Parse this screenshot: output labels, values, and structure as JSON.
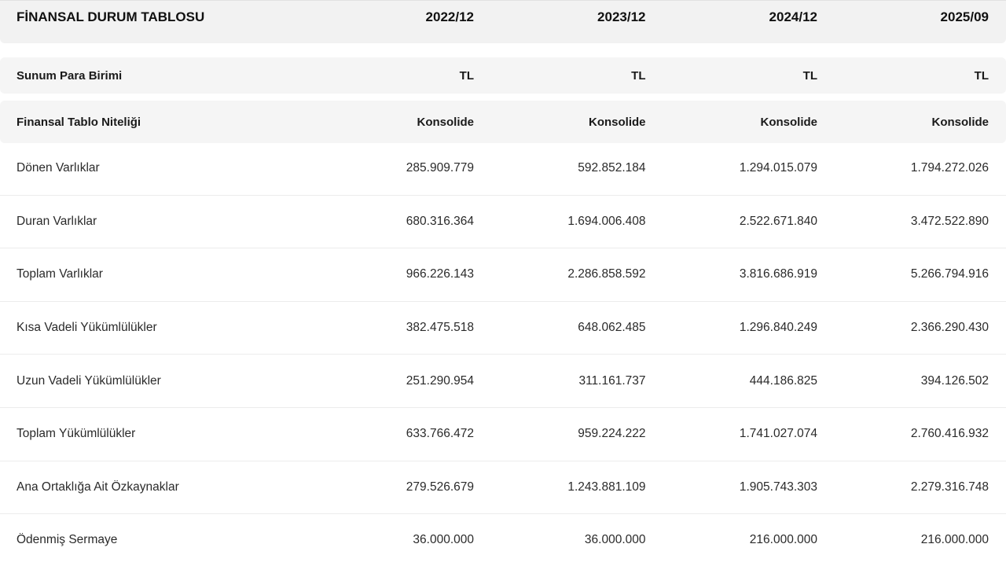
{
  "header": {
    "title": "FİNANSAL DURUM TABLOSU",
    "periods": [
      "2022/12",
      "2023/12",
      "2024/12",
      "2025/09"
    ]
  },
  "meta_rows": [
    {
      "label": "Sunum Para Birimi",
      "values": [
        "TL",
        "TL",
        "TL",
        "TL"
      ]
    },
    {
      "label": "Finansal Tablo Niteliği",
      "values": [
        "Konsolide",
        "Konsolide",
        "Konsolide",
        "Konsolide"
      ]
    }
  ],
  "rows": [
    {
      "label": "Dönen Varlıklar",
      "values": [
        "285.909.779",
        "592.852.184",
        "1.294.015.079",
        "1.794.272.026"
      ]
    },
    {
      "label": "Duran Varlıklar",
      "values": [
        "680.316.364",
        "1.694.006.408",
        "2.522.671.840",
        "3.472.522.890"
      ]
    },
    {
      "label": "Toplam Varlıklar",
      "values": [
        "966.226.143",
        "2.286.858.592",
        "3.816.686.919",
        "5.266.794.916"
      ]
    },
    {
      "label": "Kısa Vadeli Yükümlülükler",
      "values": [
        "382.475.518",
        "648.062.485",
        "1.296.840.249",
        "2.366.290.430"
      ]
    },
    {
      "label": "Uzun Vadeli Yükümlülükler",
      "values": [
        "251.290.954",
        "311.161.737",
        "444.186.825",
        "394.126.502"
      ]
    },
    {
      "label": "Toplam Yükümlülükler",
      "values": [
        "633.766.472",
        "959.224.222",
        "1.741.027.074",
        "2.760.416.932"
      ]
    },
    {
      "label": "Ana Ortaklığa Ait Özkaynaklar",
      "values": [
        "279.526.679",
        "1.243.881.109",
        "1.905.743.303",
        "2.279.316.748"
      ]
    },
    {
      "label": "Ödenmiş Sermaye",
      "values": [
        "36.000.000",
        "36.000.000",
        "216.000.000",
        "216.000.000"
      ]
    }
  ]
}
